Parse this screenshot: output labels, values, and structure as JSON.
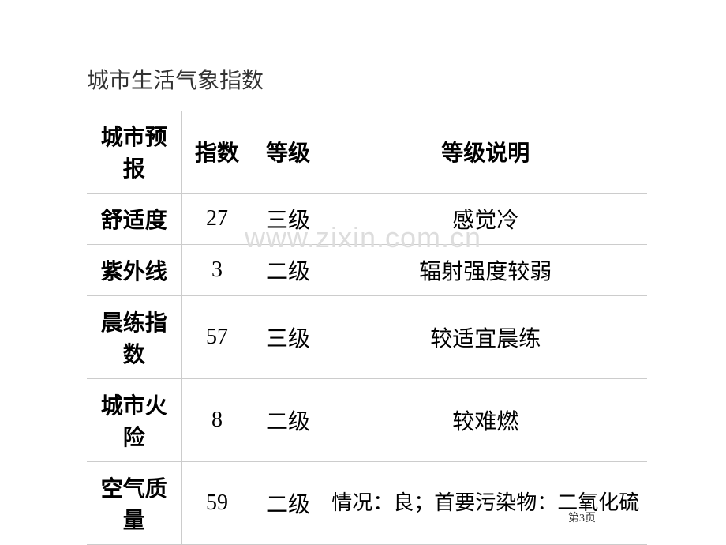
{
  "title": "城市生活气象指数",
  "watermark": "www.zixin.com.cn",
  "pageNumber": "第3页",
  "table": {
    "headers": {
      "forecast": "城市预报",
      "index": "指数",
      "grade": "等级",
      "description": "等级说明"
    },
    "rows": [
      {
        "forecast": "舒适度",
        "index": "27",
        "grade": "三级",
        "description": "感觉冷"
      },
      {
        "forecast": "紫外线",
        "index": "3",
        "grade": "二级",
        "description": "辐射强度较弱"
      },
      {
        "forecast": "晨练指数",
        "index": "57",
        "grade": "三级",
        "description": "较适宜晨练"
      },
      {
        "forecast": "城市火险",
        "index": "8",
        "grade": "二级",
        "description": "较难燃"
      },
      {
        "forecast": "空气质量",
        "index": "59",
        "grade": "二级",
        "description": "情况：良；首要污染物：二氧化硫"
      }
    ]
  },
  "styling": {
    "background_color": "#ffffff",
    "text_color": "#000000",
    "border_color": "#cccccc",
    "watermark_color": "#dddddd",
    "title_fontsize": 28,
    "cell_fontsize": 28,
    "header_font": "SimHei",
    "body_font": "SimSun",
    "column_widths": {
      "forecast": 120,
      "index": 90,
      "grade": 90,
      "description": "auto"
    }
  }
}
